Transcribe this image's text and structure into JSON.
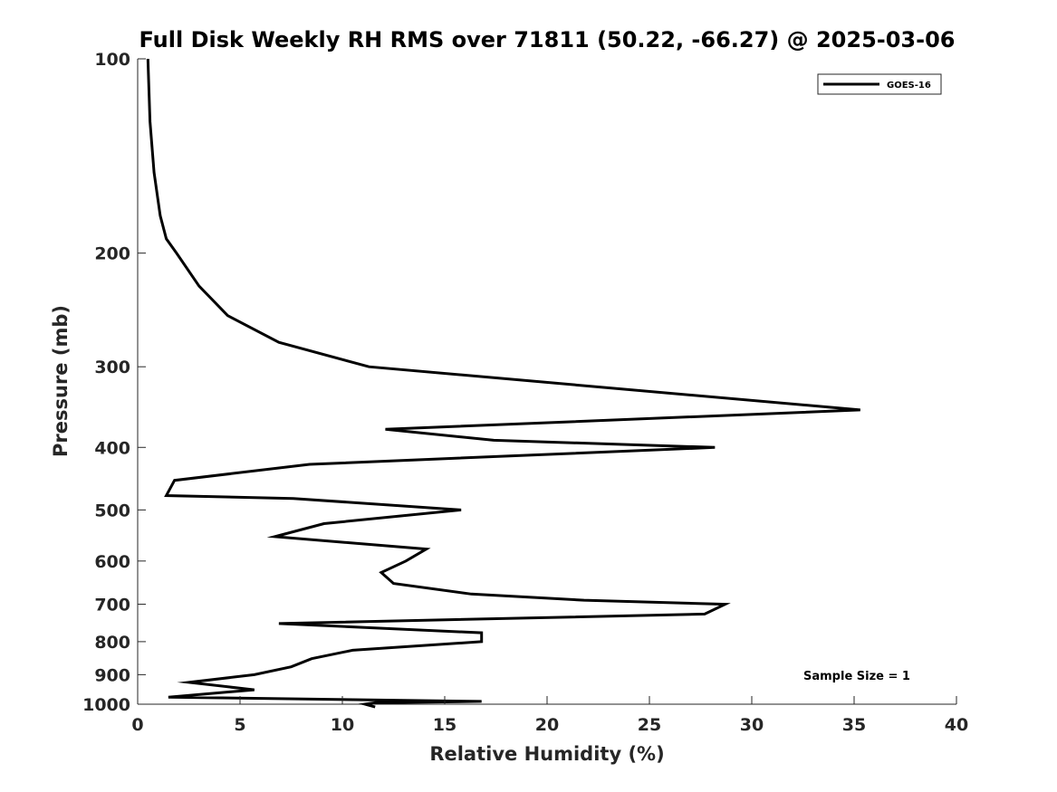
{
  "chart_data": {
    "type": "line",
    "title": "Full Disk Weekly RH RMS over 71811 (50.22, -66.27) @ 2025-03-06",
    "xlabel": "Relative Humidity (%)",
    "ylabel": "Pressure (mb)",
    "xlim": [
      0,
      40
    ],
    "ylim": [
      100,
      1000
    ],
    "yscale": "log",
    "y_reversed": true,
    "xticks": [
      0,
      5,
      10,
      15,
      20,
      25,
      30,
      35,
      40
    ],
    "yticks": [
      100,
      200,
      300,
      400,
      500,
      600,
      700,
      800,
      900,
      1000
    ],
    "grid": false,
    "legend_position": "top-right",
    "series": [
      {
        "name": "GOES-16",
        "color": "#000000",
        "x": [
          0.5,
          0.6,
          0.8,
          1.1,
          1.4,
          1.9,
          3.0,
          4.4,
          6.9,
          11.3,
          35.3,
          12.1,
          17.4,
          28.2,
          8.4,
          1.8,
          1.4,
          7.6,
          15.8,
          9.1,
          6.7,
          14.1,
          13.1,
          11.9,
          12.5,
          16.3,
          21.8,
          28.7,
          27.7,
          6.9,
          16.8,
          16.8,
          10.5,
          8.5,
          7.5,
          5.7,
          2.5,
          5.7,
          1.5,
          16.8,
          11.6,
          11.1,
          11.6
        ],
        "y": [
          100,
          125,
          150,
          175,
          190,
          200,
          225,
          250,
          275,
          300,
          350,
          375,
          390,
          400,
          425,
          450,
          475,
          480,
          500,
          525,
          550,
          575,
          600,
          625,
          650,
          675,
          690,
          700,
          725,
          750,
          775,
          800,
          825,
          850,
          875,
          900,
          925,
          950,
          975,
          990,
          995,
          1000,
          1010
        ]
      }
    ],
    "annotation": "Sample Size = 1"
  }
}
